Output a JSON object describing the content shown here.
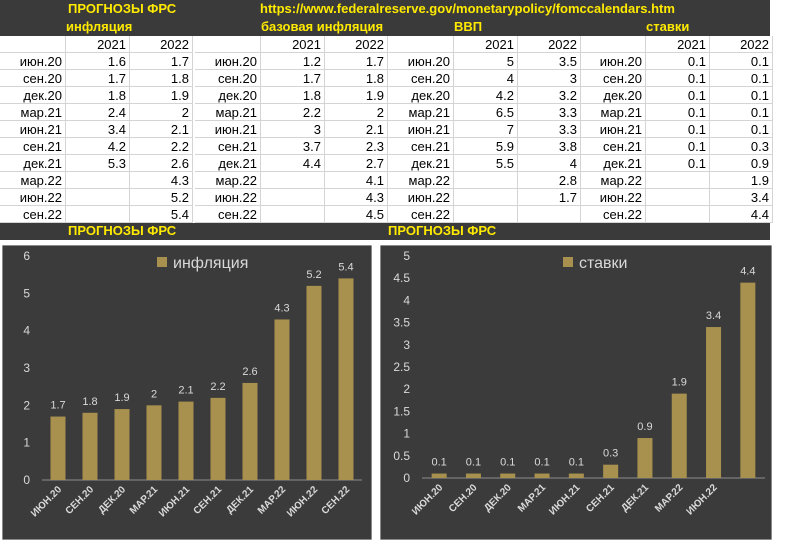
{
  "table": {
    "header": {
      "title": "ПРОГНОЗЫ ФРС",
      "url": "https://www.federalreserve.gov/monetarypolicy/fomccalendars.htm"
    },
    "blocks": [
      {
        "name": "инфляция",
        "years": [
          "2021",
          "2022"
        ],
        "rows": [
          [
            "июн.20",
            1.6,
            1.7
          ],
          [
            "сен.20",
            1.7,
            1.8
          ],
          [
            "дек.20",
            1.8,
            1.9
          ],
          [
            "мар.21",
            2.4,
            2
          ],
          [
            "июн.21",
            3.4,
            2.1
          ],
          [
            "сен.21",
            4.2,
            2.2
          ],
          [
            "дек.21",
            5.3,
            2.6
          ],
          [
            "мар.22",
            null,
            4.3
          ],
          [
            "июн.22",
            null,
            5.2
          ],
          [
            "сен.22",
            null,
            5.4
          ]
        ]
      },
      {
        "name": "базовая инфляция",
        "years": [
          "2021",
          "2022"
        ],
        "rows": [
          [
            "июн.20",
            1.2,
            1.7
          ],
          [
            "сен.20",
            1.7,
            1.8
          ],
          [
            "дек.20",
            1.8,
            1.9
          ],
          [
            "мар.21",
            2.2,
            2
          ],
          [
            "июн.21",
            3,
            2.1
          ],
          [
            "сен.21",
            3.7,
            2.3
          ],
          [
            "дек.21",
            4.4,
            2.7
          ],
          [
            "мар.22",
            null,
            4.1
          ],
          [
            "июн.22",
            null,
            4.3
          ],
          [
            "сен.22",
            null,
            4.5
          ]
        ]
      },
      {
        "name": "ВВП",
        "years": [
          "2021",
          "2022"
        ],
        "rows": [
          [
            "июн.20",
            5,
            3.5
          ],
          [
            "сен.20",
            4,
            3
          ],
          [
            "дек.20",
            4.2,
            3.2
          ],
          [
            "мар.21",
            6.5,
            3.3
          ],
          [
            "июн.21",
            7,
            3.3
          ],
          [
            "сен.21",
            5.9,
            3.8
          ],
          [
            "дек.21",
            5.5,
            4
          ],
          [
            "мар.22",
            null,
            2.8
          ],
          [
            "июн.22",
            null,
            1.7
          ],
          [
            "сен.22",
            null,
            null
          ]
        ]
      },
      {
        "name": "ставки",
        "years": [
          "2021",
          "2022"
        ],
        "rows": [
          [
            "июн.20",
            0.1,
            0.1
          ],
          [
            "сен.20",
            0.1,
            0.1
          ],
          [
            "дек.20",
            0.1,
            0.1
          ],
          [
            "мар.21",
            0.1,
            0.1
          ],
          [
            "июн.21",
            0.1,
            0.1
          ],
          [
            "сен.21",
            0.1,
            0.3
          ],
          [
            "дек.21",
            0.1,
            0.9
          ],
          [
            "мар.22",
            null,
            1.9
          ],
          [
            "июн.22",
            null,
            3.4
          ],
          [
            "сен.22",
            null,
            4.4
          ]
        ]
      }
    ],
    "section_titles": [
      "ПРОГНОЗЫ ФРС",
      "ПРОГНОЗЫ ФРС"
    ]
  },
  "chart_data": [
    {
      "type": "bar",
      "legend": "инфляция",
      "color": "#a8914e",
      "categories": [
        "ИЮН.20",
        "СЕН.20",
        "ДЕК.20",
        "МАР.21",
        "ИЮН.21",
        "СЕН.21",
        "ДЕК.21",
        "МАР.22",
        "ИЮН.22",
        "СЕН.22"
      ],
      "values": [
        1.7,
        1.8,
        1.9,
        2,
        2.1,
        2.2,
        2.6,
        4.3,
        5.2,
        5.4
      ],
      "ylim": [
        0,
        6
      ],
      "yticks": [
        0,
        1,
        2,
        3,
        4,
        5,
        6
      ]
    },
    {
      "type": "bar",
      "legend": "ставки",
      "color": "#a8914e",
      "categories": [
        "ИЮН.20",
        "СЕН.20",
        "ДЕК.20",
        "МАР.21",
        "ИЮН.21",
        "СЕН.21",
        "ДЕК.21",
        "МАР.22",
        "ИЮН.22",
        null
      ],
      "values": [
        0.1,
        0.1,
        0.1,
        0.1,
        0.1,
        0.3,
        0.9,
        1.9,
        3.4,
        4.4
      ],
      "ylim": [
        0,
        5
      ],
      "yticks": [
        0,
        0.5,
        1,
        1.5,
        2,
        2.5,
        3,
        3.5,
        4,
        4.5,
        5
      ]
    }
  ]
}
